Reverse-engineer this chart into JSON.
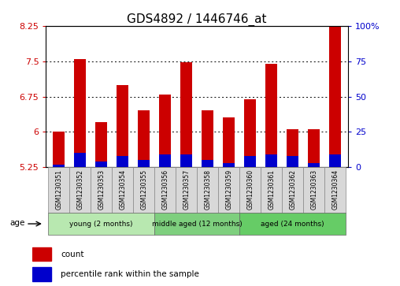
{
  "title": "GDS4892 / 1446746_at",
  "samples": [
    "GSM1230351",
    "GSM1230352",
    "GSM1230353",
    "GSM1230354",
    "GSM1230355",
    "GSM1230356",
    "GSM1230357",
    "GSM1230358",
    "GSM1230359",
    "GSM1230360",
    "GSM1230361",
    "GSM1230362",
    "GSM1230363",
    "GSM1230364"
  ],
  "count_values": [
    6.0,
    7.55,
    6.2,
    7.0,
    6.45,
    6.8,
    7.47,
    6.45,
    6.3,
    6.7,
    7.45,
    6.05,
    6.05,
    8.35
  ],
  "percentile_values": [
    2,
    10,
    4,
    8,
    5,
    9,
    9,
    5,
    3,
    8,
    9,
    8,
    3,
    9
  ],
  "ymin": 5.25,
  "ymax": 8.25,
  "yticks": [
    5.25,
    6.0,
    6.75,
    7.5,
    8.25
  ],
  "ytick_labels": [
    "5.25",
    "6",
    "6.75",
    "7.5",
    "8.25"
  ],
  "right_yticks": [
    0,
    25,
    50,
    75,
    100
  ],
  "right_ytick_labels": [
    "0",
    "25",
    "50",
    "75",
    "100%"
  ],
  "bar_color": "#cc0000",
  "percentile_color": "#0000cc",
  "background_color": "#ffffff",
  "grid_lines": [
    6.0,
    6.75,
    7.5
  ],
  "groups": [
    {
      "label": "young (2 months)",
      "start": 0,
      "end": 5
    },
    {
      "label": "middle aged (12 months)",
      "start": 5,
      "end": 9
    },
    {
      "label": "aged (24 months)",
      "start": 9,
      "end": 14
    }
  ],
  "group_colors": [
    "#b8e8b0",
    "#7ecf7e",
    "#66cc66"
  ],
  "age_label": "age",
  "legend_count": "count",
  "legend_percentile": "percentile rank within the sample",
  "bar_width": 0.55
}
